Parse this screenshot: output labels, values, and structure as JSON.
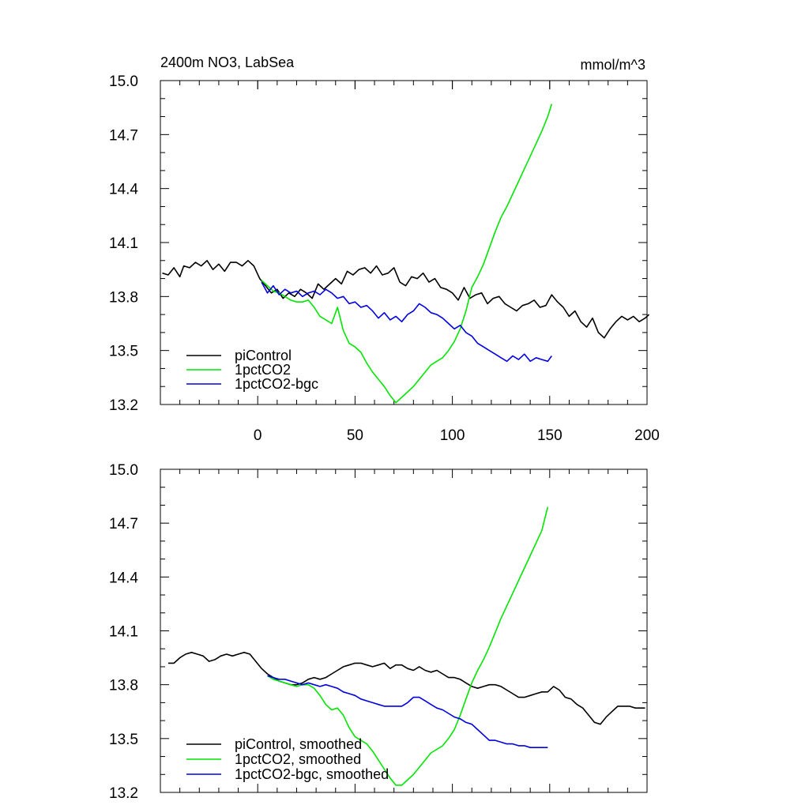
{
  "chart_data": [
    {
      "type": "line",
      "title": "2400m NO3, LabSea",
      "units": "mmol/m^3",
      "xlim": [
        -50,
        200
      ],
      "ylim": [
        13.2,
        15.0
      ],
      "x_ticks": [
        "0",
        "50",
        "100",
        "150",
        "200"
      ],
      "y_ticks": [
        "15.0",
        "14.7",
        "14.4",
        "14.1",
        "13.8",
        "13.5",
        "13.2"
      ],
      "legend_position": "bottom-left",
      "series": [
        {
          "name": "piControl",
          "color": "#000000",
          "x": [
            -49,
            -46,
            -43,
            -40,
            -38,
            -35,
            -32,
            -29,
            -26,
            -23,
            -20,
            -17,
            -14,
            -11,
            -8,
            -5,
            -2,
            1,
            4,
            7,
            10,
            13,
            16,
            19,
            22,
            25,
            28,
            31,
            34,
            37,
            40,
            43,
            46,
            49,
            52,
            55,
            58,
            61,
            64,
            67,
            70,
            73,
            76,
            79,
            82,
            85,
            88,
            91,
            94,
            97,
            100,
            103,
            106,
            109,
            112,
            115,
            118,
            121,
            124,
            127,
            130,
            133,
            136,
            139,
            142,
            145,
            148,
            151,
            154,
            157,
            160,
            163,
            166,
            169,
            172,
            175,
            178,
            181,
            184,
            187,
            190,
            193,
            196,
            199,
            201
          ],
          "y": [
            13.93,
            13.92,
            13.96,
            13.91,
            13.97,
            13.96,
            13.99,
            13.97,
            14.0,
            13.95,
            13.98,
            13.94,
            13.99,
            13.99,
            13.97,
            14.0,
            13.97,
            13.9,
            13.86,
            13.82,
            13.84,
            13.79,
            13.82,
            13.8,
            13.84,
            13.82,
            13.79,
            13.87,
            13.84,
            13.87,
            13.9,
            13.87,
            13.94,
            13.92,
            13.95,
            13.96,
            13.93,
            13.97,
            13.92,
            13.93,
            13.96,
            13.88,
            13.86,
            13.91,
            13.9,
            13.93,
            13.88,
            13.9,
            13.85,
            13.84,
            13.82,
            13.78,
            13.85,
            13.79,
            13.81,
            13.82,
            13.76,
            13.79,
            13.8,
            13.76,
            13.74,
            13.72,
            13.75,
            13.76,
            13.78,
            13.74,
            13.75,
            13.81,
            13.77,
            13.74,
            13.69,
            13.72,
            13.66,
            13.63,
            13.68,
            13.6,
            13.57,
            13.62,
            13.66,
            13.69,
            13.67,
            13.69,
            13.66,
            13.68,
            13.7
          ]
        },
        {
          "name": "1pctCO2",
          "color": "#00e600",
          "x": [
            2,
            5,
            8,
            11,
            14,
            17,
            20,
            23,
            26,
            29,
            32,
            35,
            38,
            41,
            44,
            47,
            50,
            53,
            56,
            59,
            62,
            65,
            68,
            71,
            74,
            77,
            80,
            83,
            86,
            89,
            92,
            95,
            98,
            101,
            104,
            107,
            110,
            113,
            116,
            119,
            122,
            125,
            128,
            131,
            134,
            137,
            140,
            143,
            146,
            149,
            151
          ],
          "y": [
            13.89,
            13.86,
            13.83,
            13.82,
            13.8,
            13.78,
            13.77,
            13.77,
            13.78,
            13.74,
            13.69,
            13.67,
            13.65,
            13.74,
            13.61,
            13.54,
            13.52,
            13.49,
            13.43,
            13.38,
            13.34,
            13.3,
            13.25,
            13.21,
            13.24,
            13.27,
            13.3,
            13.34,
            13.38,
            13.42,
            13.44,
            13.46,
            13.5,
            13.55,
            13.62,
            13.72,
            13.85,
            13.91,
            13.98,
            14.07,
            14.16,
            14.24,
            14.3,
            14.37,
            14.44,
            14.51,
            14.58,
            14.65,
            14.72,
            14.8,
            14.87
          ]
        },
        {
          "name": "1pctCO2-bgc",
          "color": "#0000e0",
          "x": [
            2,
            5,
            8,
            11,
            14,
            17,
            20,
            23,
            26,
            29,
            32,
            35,
            38,
            41,
            44,
            47,
            50,
            53,
            56,
            59,
            62,
            65,
            68,
            71,
            74,
            77,
            80,
            83,
            86,
            89,
            92,
            95,
            98,
            101,
            104,
            107,
            110,
            113,
            116,
            119,
            122,
            125,
            128,
            131,
            134,
            137,
            140,
            143,
            146,
            149,
            151
          ],
          "y": [
            13.88,
            13.82,
            13.86,
            13.81,
            13.84,
            13.82,
            13.83,
            13.8,
            13.82,
            13.83,
            13.81,
            13.84,
            13.82,
            13.79,
            13.8,
            13.76,
            13.77,
            13.74,
            13.75,
            13.72,
            13.68,
            13.71,
            13.67,
            13.69,
            13.66,
            13.7,
            13.72,
            13.76,
            13.74,
            13.71,
            13.7,
            13.68,
            13.65,
            13.62,
            13.64,
            13.6,
            13.58,
            13.54,
            13.52,
            13.5,
            13.48,
            13.46,
            13.44,
            13.47,
            13.45,
            13.48,
            13.44,
            13.46,
            13.45,
            13.44,
            13.47
          ]
        }
      ]
    },
    {
      "type": "line",
      "title": "",
      "units": "",
      "xlim": [
        -50,
        200
      ],
      "ylim": [
        13.2,
        15.0
      ],
      "x_ticks": [],
      "y_ticks": [
        "15.0",
        "14.7",
        "14.4",
        "14.1",
        "13.8",
        "13.5",
        "13.2"
      ],
      "legend_position": "bottom-left",
      "series": [
        {
          "name": "piControl, smoothed",
          "color": "#000000",
          "x": [
            -46,
            -43,
            -40,
            -37,
            -34,
            -31,
            -28,
            -25,
            -22,
            -19,
            -16,
            -13,
            -10,
            -7,
            -4,
            -1,
            2,
            5,
            8,
            11,
            14,
            17,
            20,
            23,
            26,
            29,
            32,
            35,
            38,
            41,
            44,
            47,
            50,
            53,
            56,
            59,
            62,
            65,
            68,
            71,
            74,
            77,
            80,
            83,
            86,
            89,
            92,
            95,
            98,
            101,
            104,
            107,
            110,
            113,
            116,
            119,
            122,
            125,
            128,
            131,
            134,
            137,
            140,
            143,
            146,
            149,
            152,
            155,
            158,
            161,
            164,
            167,
            170,
            173,
            176,
            179,
            182,
            185,
            188,
            191,
            194,
            197,
            199
          ],
          "y": [
            13.92,
            13.92,
            13.95,
            13.97,
            13.98,
            13.97,
            13.96,
            13.93,
            13.94,
            13.96,
            13.97,
            13.96,
            13.97,
            13.98,
            13.97,
            13.93,
            13.89,
            13.86,
            13.84,
            13.82,
            13.81,
            13.8,
            13.8,
            13.81,
            13.83,
            13.84,
            13.83,
            13.84,
            13.86,
            13.88,
            13.9,
            13.91,
            13.92,
            13.92,
            13.91,
            13.9,
            13.91,
            13.92,
            13.89,
            13.91,
            13.91,
            13.89,
            13.88,
            13.9,
            13.88,
            13.87,
            13.88,
            13.86,
            13.84,
            13.84,
            13.83,
            13.81,
            13.79,
            13.78,
            13.79,
            13.8,
            13.8,
            13.79,
            13.77,
            13.75,
            13.73,
            13.73,
            13.74,
            13.75,
            13.76,
            13.76,
            13.79,
            13.77,
            13.73,
            13.72,
            13.69,
            13.67,
            13.63,
            13.59,
            13.58,
            13.62,
            13.65,
            13.68,
            13.68,
            13.68,
            13.67,
            13.67,
            13.67
          ]
        },
        {
          "name": "1pctCO2, smoothed",
          "color": "#00e600",
          "x": [
            5,
            8,
            11,
            14,
            17,
            20,
            23,
            26,
            29,
            32,
            35,
            38,
            41,
            44,
            47,
            50,
            53,
            56,
            59,
            62,
            65,
            68,
            71,
            74,
            77,
            80,
            83,
            86,
            89,
            92,
            95,
            98,
            101,
            104,
            107,
            110,
            113,
            116,
            119,
            122,
            125,
            128,
            131,
            134,
            137,
            140,
            143,
            146,
            149
          ],
          "y": [
            13.85,
            13.83,
            13.82,
            13.81,
            13.8,
            13.79,
            13.8,
            13.8,
            13.78,
            13.74,
            13.69,
            13.66,
            13.67,
            13.63,
            13.56,
            13.51,
            13.49,
            13.47,
            13.43,
            13.38,
            13.33,
            13.28,
            13.24,
            13.24,
            13.27,
            13.3,
            13.34,
            13.38,
            13.42,
            13.44,
            13.46,
            13.5,
            13.55,
            13.63,
            13.72,
            13.81,
            13.88,
            13.94,
            14.01,
            14.09,
            14.17,
            14.24,
            14.31,
            14.38,
            14.45,
            14.52,
            14.59,
            14.66,
            14.79
          ]
        },
        {
          "name": "1pctCO2-bgc, smoothed",
          "color": "#0000e0",
          "x": [
            5,
            8,
            11,
            14,
            17,
            20,
            23,
            26,
            29,
            32,
            35,
            38,
            41,
            44,
            47,
            50,
            53,
            56,
            59,
            62,
            65,
            68,
            71,
            74,
            77,
            80,
            83,
            86,
            89,
            92,
            95,
            98,
            101,
            104,
            107,
            110,
            113,
            116,
            119,
            122,
            125,
            128,
            131,
            134,
            137,
            140,
            143,
            146,
            149
          ],
          "y": [
            13.85,
            13.84,
            13.83,
            13.83,
            13.82,
            13.81,
            13.8,
            13.81,
            13.8,
            13.79,
            13.8,
            13.79,
            13.78,
            13.76,
            13.75,
            13.74,
            13.72,
            13.71,
            13.7,
            13.69,
            13.68,
            13.68,
            13.68,
            13.68,
            13.7,
            13.73,
            13.73,
            13.71,
            13.69,
            13.67,
            13.66,
            13.64,
            13.62,
            13.61,
            13.59,
            13.58,
            13.55,
            13.52,
            13.49,
            13.49,
            13.48,
            13.47,
            13.47,
            13.46,
            13.46,
            13.45,
            13.45,
            13.45,
            13.45
          ]
        }
      ]
    }
  ]
}
